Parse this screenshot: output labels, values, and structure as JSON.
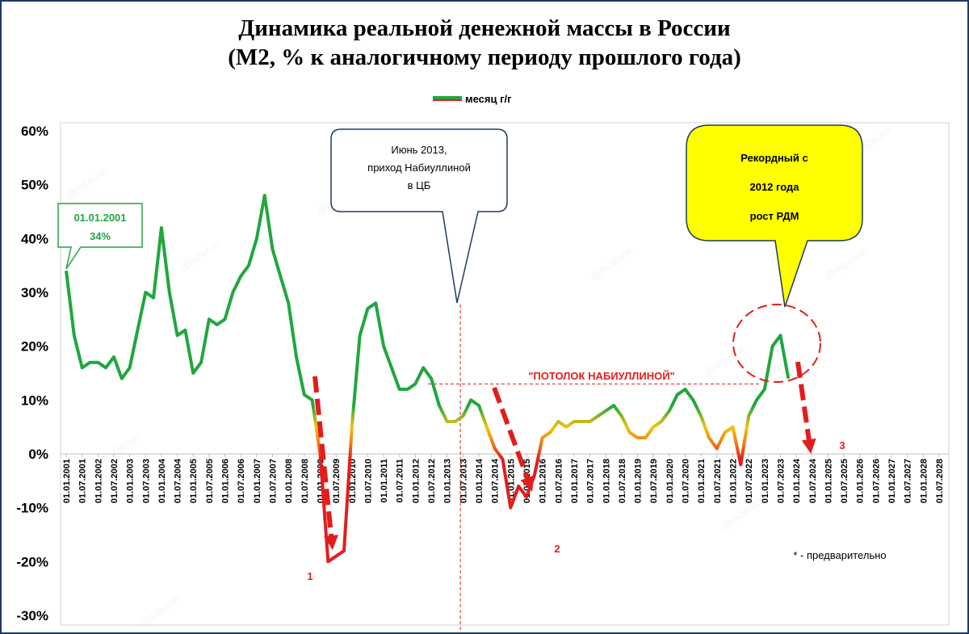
{
  "chart_data": {
    "type": "line",
    "title": [
      "Динамика реальной денежной массы в России",
      "(М2, % к аналогичному периоду прошлого года)"
    ],
    "legend": "месяц г/г",
    "watermark": "@m2econ",
    "xlim": [
      "01.01.2001",
      "01.07.2028"
    ],
    "xticks": [
      "01.01.2001",
      "01.07.2001",
      "01.01.2002",
      "01.07.2002",
      "01.01.2003",
      "01.07.2003",
      "01.01.2004",
      "01.07.2004",
      "01.01.2005",
      "01.07.2005",
      "01.01.2006",
      "01.07.2006",
      "01.01.2007",
      "01.07.2007",
      "01.01.2008",
      "01.07.2008",
      "01.01.2009",
      "01.07.2009",
      "01.01.2010",
      "01.07.2010",
      "01.01.2011",
      "01.07.2011",
      "01.01.2012",
      "01.07.2012",
      "01.01.2013",
      "01.07.2013",
      "01.01.2014",
      "01.07.2014",
      "01.01.2015",
      "01.07.2015",
      "01.01.2016",
      "01.07.2016",
      "01.01.2017",
      "01.07.2017",
      "01.01.2018",
      "01.07.2018",
      "01.01.2019",
      "01.07.2019",
      "01.01.2020",
      "01.07.2020",
      "01.01.2021",
      "01.07.2021",
      "01.01.2022",
      "01.07.2022",
      "01.01.2023",
      "01.07.2023",
      "01.01.2024",
      "01.07.2024",
      "01.01.2025",
      "01.07.2025",
      "01.01.2026",
      "01.07.2026",
      "01.01.2027",
      "01.07.2027",
      "01.01.2028",
      "01.07.2028"
    ],
    "ylim": [
      -30,
      60
    ],
    "yticks": [
      {
        "value": -30,
        "label": "-30%"
      },
      {
        "value": -20,
        "label": "-20%"
      },
      {
        "value": -10,
        "label": "-10%"
      },
      {
        "value": 0,
        "label": "0%"
      },
      {
        "value": 10,
        "label": "10%"
      },
      {
        "value": 20,
        "label": "20%"
      },
      {
        "value": 30,
        "label": "30%"
      },
      {
        "value": 40,
        "label": "40%"
      },
      {
        "value": 50,
        "label": "50%"
      },
      {
        "value": 60,
        "label": "60%"
      }
    ],
    "x": [
      "01.01.2001",
      "01.04.2001",
      "01.07.2001",
      "01.10.2001",
      "01.01.2002",
      "01.04.2002",
      "01.07.2002",
      "01.10.2002",
      "01.01.2003",
      "01.04.2003",
      "01.07.2003",
      "01.10.2003",
      "01.01.2004",
      "01.04.2004",
      "01.07.2004",
      "01.10.2004",
      "01.01.2005",
      "01.04.2005",
      "01.07.2005",
      "01.10.2005",
      "01.01.2006",
      "01.04.2006",
      "01.07.2006",
      "01.10.2006",
      "01.01.2007",
      "01.04.2007",
      "01.07.2007",
      "01.10.2007",
      "01.01.2008",
      "01.04.2008",
      "01.07.2008",
      "01.10.2008",
      "01.01.2009",
      "01.04.2009",
      "01.07.2009",
      "01.10.2009",
      "01.01.2010",
      "01.04.2010",
      "01.07.2010",
      "01.10.2010",
      "01.01.2011",
      "01.04.2011",
      "01.07.2011",
      "01.10.2011",
      "01.01.2012",
      "01.04.2012",
      "01.07.2012",
      "01.10.2012",
      "01.01.2013",
      "01.04.2013",
      "01.07.2013",
      "01.10.2013",
      "01.01.2014",
      "01.04.2014",
      "01.07.2014",
      "01.10.2014",
      "01.01.2015",
      "01.04.2015",
      "01.07.2015",
      "01.10.2015",
      "01.01.2016",
      "01.04.2016",
      "01.07.2016",
      "01.10.2016",
      "01.01.2017",
      "01.04.2017",
      "01.07.2017",
      "01.10.2017",
      "01.01.2018",
      "01.04.2018",
      "01.07.2018",
      "01.10.2018",
      "01.01.2019",
      "01.04.2019",
      "01.07.2019",
      "01.10.2019",
      "01.01.2020",
      "01.04.2020",
      "01.07.2020",
      "01.10.2020",
      "01.01.2021",
      "01.04.2021",
      "01.07.2021",
      "01.10.2021",
      "01.01.2022",
      "01.04.2022",
      "01.07.2022",
      "01.10.2022",
      "01.01.2023",
      "01.04.2023",
      "01.07.2023",
      "01.10.2023"
    ],
    "series": [
      {
        "name": "месяц г/г",
        "values": [
          34,
          22,
          16,
          17,
          17,
          16,
          18,
          14,
          16,
          23,
          30,
          29,
          42,
          30,
          22,
          23,
          15,
          17,
          25,
          24,
          25,
          30,
          33,
          35,
          40,
          48,
          38,
          33,
          28,
          18,
          11,
          10,
          0,
          -20,
          -19,
          -18,
          5,
          22,
          27,
          28,
          20,
          16,
          12,
          12,
          13,
          16,
          14,
          9,
          6,
          6,
          7,
          10,
          9,
          5,
          1,
          -1,
          -10,
          -6,
          -8,
          -4,
          3,
          4,
          6,
          5,
          6,
          6,
          6,
          7,
          8,
          9,
          7,
          4,
          3,
          3,
          5,
          6,
          8,
          11,
          12,
          10,
          7,
          3,
          1,
          4,
          5,
          -2,
          7,
          10,
          12,
          20,
          22,
          14
        ]
      }
    ],
    "color_stops": [
      {
        "value": 9,
        "color": "#21a63f"
      },
      {
        "value": 5,
        "color": "#f2c40f"
      },
      {
        "value": 2,
        "color": "#f07d14"
      },
      {
        "value": -1,
        "color": "#e31d1d"
      }
    ],
    "annotations": {
      "start": [
        "01.01.2001",
        "34%"
      ],
      "june2013": [
        "Июнь 2013,",
        "приход Набиуллиной",
        "в ЦБ"
      ],
      "record": [
        "Рекордный с",
        "2012 года",
        "рост РДМ"
      ],
      "ceiling": "\"ПОТОЛОК НАБИУЛЛИНОЙ\"",
      "n1": "1",
      "n2": "2",
      "n3": "3",
      "note": "* - предварительно"
    },
    "vline": "01.06.2013",
    "hline": 13
  }
}
